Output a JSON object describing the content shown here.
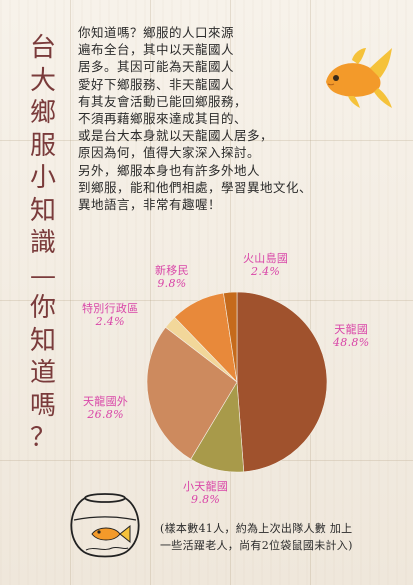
{
  "title_chars": [
    "台",
    "大",
    "鄉",
    "服",
    "小",
    "知",
    "識",
    "—",
    "你",
    "知",
    "道",
    "嗎",
    "？"
  ],
  "paragraph_lines": [
    "你知道嗎？鄉服的人口來源",
    "遍布全台，其中以天龍國人",
    "居多。其因可能為天龍國人",
    "愛好下鄉服務、非天龍國人",
    "有其友會活動已能回鄉服務，",
    "不須再藉鄉服來達成其目的、",
    "或是台大本身就以天龍國人居多，",
    "原因為何，值得大家深入探討。",
    "另外，鄉服本身也有許多外地人",
    "到鄉服，能和他們相處，學習異地文化、",
    "異地語言，非常有趣喔！"
  ],
  "chart_data": {
    "type": "pie",
    "title": "",
    "slices": [
      {
        "name": "天龍國",
        "value": 48.8,
        "label_pct": "48.8%",
        "color": "#a0522d"
      },
      {
        "name": "小天龍國",
        "value": 9.8,
        "label_pct": "9.8%",
        "color": "#a89a4a"
      },
      {
        "name": "天龍國外",
        "value": 26.8,
        "label_pct": "26.8%",
        "color": "#cd8a5e"
      },
      {
        "name": "特別行政區",
        "value": 2.4,
        "label_pct": "2.4%",
        "color": "#f2d79a"
      },
      {
        "name": "新移民",
        "value": 9.8,
        "label_pct": "9.8%",
        "color": "#e8893a"
      },
      {
        "name": "火山島國",
        "value": 2.4,
        "label_pct": "2.4%",
        "color": "#c56a1c"
      }
    ]
  },
  "note_lines": [
    "(樣本數41人，約為上次出隊人數 加上",
    "一些活躍老人，尚有2位袋鼠國未計入)"
  ]
}
